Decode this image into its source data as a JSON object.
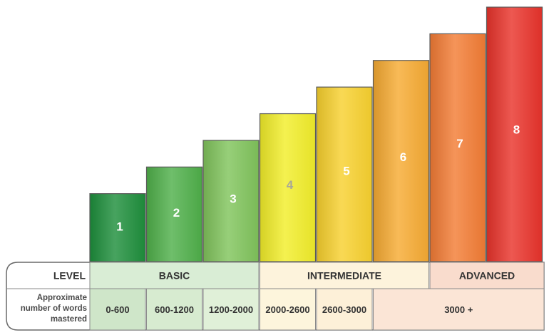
{
  "chart_data": {
    "type": "bar",
    "categories": [
      "1",
      "2",
      "3",
      "4",
      "5",
      "6",
      "7",
      "8"
    ],
    "values": [
      1,
      2,
      3,
      4,
      5,
      6,
      7,
      8
    ],
    "bar_colors": [
      "#1e8f3c",
      "#4fb04a",
      "#80c45c",
      "#f2ee2a",
      "#f8d12e",
      "#f6ab32",
      "#f37c35",
      "#e9332b"
    ],
    "level_row": {
      "label": "LEVEL",
      "groups": [
        {
          "name": "BASIC",
          "span": [
            1,
            3
          ],
          "color": "#d9edd5"
        },
        {
          "name": "INTERMEDIATE",
          "span": [
            4,
            6
          ],
          "color": "#fdf3dc"
        },
        {
          "name": "ADVANCED",
          "span": [
            7,
            8
          ],
          "color": "#f9dccd"
        }
      ]
    },
    "words_row": {
      "label_lines": [
        "Approximate",
        "number of words",
        "mastered"
      ],
      "ranges": [
        {
          "text": "0-600",
          "span": [
            1,
            1
          ],
          "color": "#cfe6c9"
        },
        {
          "text": "600-1200",
          "span": [
            2,
            2
          ],
          "color": "#d7ebd0"
        },
        {
          "text": "1200-2000",
          "span": [
            3,
            3
          ],
          "color": "#e0f0d8"
        },
        {
          "text": "2000-2600",
          "span": [
            4,
            4
          ],
          "color": "#fdf5dc"
        },
        {
          "text": "2600-3000",
          "span": [
            5,
            5
          ],
          "color": "#fdf0d8"
        },
        {
          "text": "3000 +",
          "span": [
            6,
            8
          ],
          "color": "#fbe5d6"
        }
      ]
    }
  }
}
